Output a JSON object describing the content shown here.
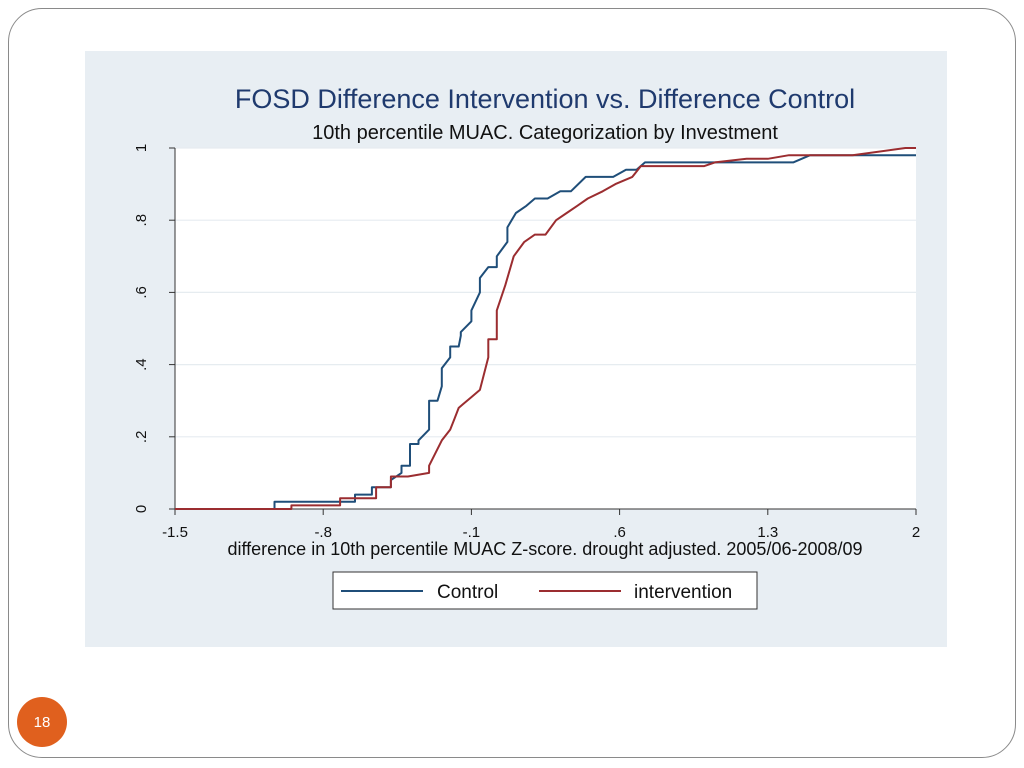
{
  "slide": {
    "page_number": "18"
  },
  "colors": {
    "panel_bg": "#e8eef3",
    "control": "#1f4e79",
    "intervention": "#9b2d30",
    "page_badge": "#e0601e"
  },
  "chart_data": {
    "type": "line",
    "title": "FOSD Difference Intervention vs. Difference Control",
    "subtitle": "10th percentile MUAC. Categorization by Investment",
    "xlabel": "difference in 10th percentile MUAC Z-score. drought adjusted. 2005/06-2008/09",
    "ylabel": "",
    "xlim": [
      -1.5,
      2
    ],
    "ylim": [
      0,
      1
    ],
    "x_ticks": [
      -1.5,
      -0.8,
      -0.1,
      0.6,
      1.3,
      2
    ],
    "x_tick_labels": [
      "-1.5",
      "-.8",
      "-.1",
      ".6",
      "1.3",
      "2"
    ],
    "y_ticks": [
      0,
      0.2,
      0.4,
      0.6,
      0.8,
      1
    ],
    "y_tick_labels": [
      "0",
      ".2",
      ".4",
      ".6",
      ".8",
      "1"
    ],
    "grid": true,
    "legend": {
      "position": "bottom",
      "entries": [
        "Control",
        "intervention"
      ]
    },
    "series": [
      {
        "name": "Control",
        "x": [
          -1.5,
          -1.03,
          -1.03,
          -0.85,
          -0.85,
          -0.65,
          -0.65,
          -0.57,
          -0.57,
          -0.48,
          -0.48,
          -0.43,
          -0.43,
          -0.39,
          -0.39,
          -0.35,
          -0.35,
          -0.3,
          -0.3,
          -0.26,
          -0.24,
          -0.24,
          -0.2,
          -0.2,
          -0.16,
          -0.15,
          -0.15,
          -0.1,
          -0.1,
          -0.06,
          -0.06,
          -0.02,
          0.02,
          0.02,
          0.07,
          0.07,
          0.11,
          0.16,
          0.2,
          0.26,
          0.32,
          0.37,
          0.44,
          0.5,
          0.57,
          0.63,
          0.68,
          0.72,
          0.8,
          0.85,
          0.9,
          1.0,
          1.05,
          1.08,
          1.15,
          1.22,
          1.35,
          1.42,
          1.5,
          1.7,
          1.85,
          2.0
        ],
        "values": [
          0,
          0,
          0.02,
          0.02,
          0.02,
          0.02,
          0.04,
          0.04,
          0.06,
          0.06,
          0.08,
          0.1,
          0.12,
          0.12,
          0.18,
          0.18,
          0.19,
          0.22,
          0.3,
          0.3,
          0.34,
          0.39,
          0.42,
          0.45,
          0.45,
          0.48,
          0.49,
          0.52,
          0.55,
          0.6,
          0.64,
          0.67,
          0.67,
          0.7,
          0.74,
          0.78,
          0.82,
          0.84,
          0.86,
          0.86,
          0.88,
          0.88,
          0.92,
          0.92,
          0.92,
          0.94,
          0.94,
          0.96,
          0.96,
          0.96,
          0.96,
          0.96,
          0.96,
          0.96,
          0.96,
          0.96,
          0.96,
          0.96,
          0.98,
          0.98,
          0.98,
          0.98
        ]
      },
      {
        "name": "intervention",
        "x": [
          -1.5,
          -0.95,
          -0.95,
          -0.85,
          -0.85,
          -0.72,
          -0.72,
          -0.65,
          -0.65,
          -0.55,
          -0.55,
          -0.48,
          -0.48,
          -0.4,
          -0.4,
          -0.3,
          -0.3,
          -0.24,
          -0.24,
          -0.2,
          -0.18,
          -0.16,
          -0.14,
          -0.1,
          -0.06,
          -0.06,
          -0.02,
          -0.02,
          0.02,
          0.02,
          0.06,
          0.1,
          0.15,
          0.2,
          0.25,
          0.3,
          0.35,
          0.4,
          0.45,
          0.52,
          0.58,
          0.66,
          0.7,
          0.85,
          0.9,
          1.0,
          1.05,
          1.2,
          1.3,
          1.4,
          1.5,
          1.7,
          1.95,
          2.0
        ],
        "values": [
          0,
          0,
          0.01,
          0.01,
          0.01,
          0.01,
          0.03,
          0.03,
          0.03,
          0.03,
          0.06,
          0.06,
          0.09,
          0.09,
          0.09,
          0.1,
          0.12,
          0.19,
          0.19,
          0.22,
          0.25,
          0.28,
          0.29,
          0.31,
          0.33,
          0.33,
          0.42,
          0.47,
          0.47,
          0.55,
          0.62,
          0.7,
          0.74,
          0.76,
          0.76,
          0.8,
          0.82,
          0.84,
          0.86,
          0.88,
          0.9,
          0.92,
          0.95,
          0.95,
          0.95,
          0.95,
          0.96,
          0.97,
          0.97,
          0.98,
          0.98,
          0.98,
          1.0,
          1.0
        ]
      }
    ]
  }
}
